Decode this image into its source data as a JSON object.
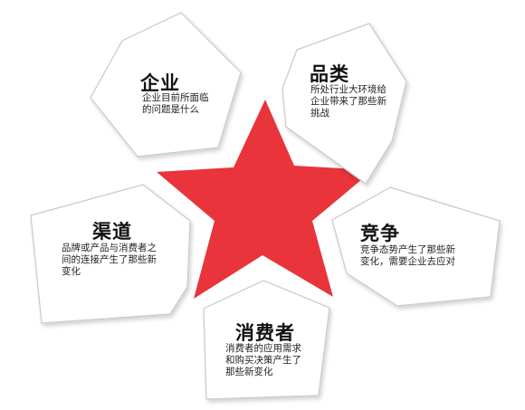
{
  "colors": {
    "star": "#e8343a",
    "card_fill": "#ffffff",
    "card_stroke": "#c9c9c9",
    "text": "#111111"
  },
  "cards": [
    {
      "key": "enterprise",
      "title": "企业",
      "desc_lines": [
        "企业目前所面临",
        "的问题是什么"
      ]
    },
    {
      "key": "category",
      "title": "品类",
      "desc_lines": [
        "所处行业大环境给",
        "企业带来了那些新",
        "挑战"
      ]
    },
    {
      "key": "competition",
      "title": "竞争",
      "desc_lines": [
        "竞争态势产生了那些新",
        "变化，需要企业去应对"
      ]
    },
    {
      "key": "consumer",
      "title": "消费者",
      "desc_lines": [
        "消费者的应用需求",
        "和购买决策产生了",
        "那些新变化"
      ]
    },
    {
      "key": "channel",
      "title": "渠道",
      "desc_lines": [
        "品牌或产品与消费者之",
        "间的连接产生了那些新",
        "变化"
      ]
    }
  ]
}
